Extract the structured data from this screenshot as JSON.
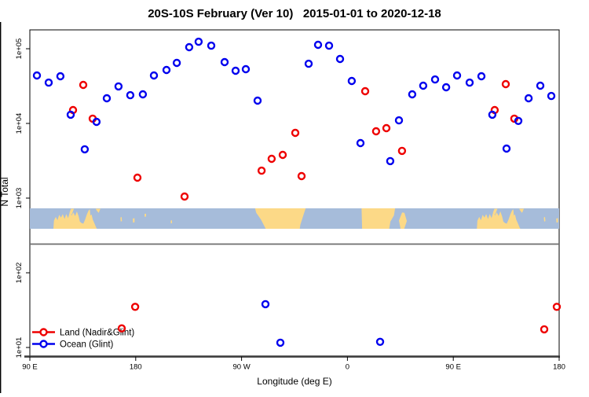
{
  "chart_data": {
    "type": "scatter",
    "title": "20S-10S February (Ver 10)   2015-01-01 to 2020-12-18",
    "xlabel": "Longitude (deg E)",
    "ylabel": "N Total",
    "x_axis": {
      "note": "longitude in deg E increasing eastward, 90E wrapped past 360 to repeat 90E-180 segment",
      "range": [
        90,
        540
      ],
      "ticks": [
        {
          "lon": 90,
          "label": "90 E"
        },
        {
          "lon": 180,
          "label": "180"
        },
        {
          "lon": 270,
          "label": "90 W"
        },
        {
          "lon": 360,
          "label": "0"
        },
        {
          "lon": 450,
          "label": "90 E"
        },
        {
          "lon": 540,
          "label": "180"
        }
      ]
    },
    "y_axis": {
      "scale": "log10",
      "range": [
        7.7,
        179000
      ],
      "ticks": [
        {
          "value": 100000,
          "label": "1e+05"
        },
        {
          "value": 10000,
          "label": "1e+04"
        },
        {
          "value": 1000,
          "label": "1e+03"
        },
        {
          "value": 100,
          "label": "1e+02"
        },
        {
          "value": 10,
          "label": "1e+01"
        }
      ],
      "grid": false
    },
    "legend_position": "bottom-left",
    "series": [
      {
        "name": "Land (Nadir&Glint)",
        "color": "#ee0000",
        "points": [
          [
            135.4,
            32800
          ],
          [
            126.7,
            15100
          ],
          [
            143.4,
            11600
          ],
          [
            181.5,
            1880
          ],
          [
            221.5,
            1050
          ],
          [
            287.0,
            2330
          ],
          [
            295.6,
            3360
          ],
          [
            305.0,
            3790
          ],
          [
            315.7,
            7480
          ],
          [
            321.0,
            1970
          ],
          [
            375.1,
            27000
          ],
          [
            384.4,
            7850
          ],
          [
            393.1,
            8650
          ],
          [
            406.4,
            4290
          ],
          [
            485.2,
            15100
          ],
          [
            494.6,
            33600
          ],
          [
            501.9,
            11600
          ],
          [
            179.5,
            35
          ],
          [
            168.1,
            18
          ],
          [
            527.3,
            17.5
          ],
          [
            538.0,
            35
          ]
        ]
      },
      {
        "name": "Ocean (Glint)",
        "color": "#0000ee",
        "points": [
          [
            96.0,
            43900
          ],
          [
            106.0,
            35200
          ],
          [
            116.0,
            42800
          ],
          [
            124.7,
            13100
          ],
          [
            136.7,
            4500
          ],
          [
            146.7,
            10500
          ],
          [
            155.4,
            21700
          ],
          [
            165.4,
            31300
          ],
          [
            175.4,
            23900
          ],
          [
            186.1,
            24500
          ],
          [
            195.5,
            43900
          ],
          [
            206.2,
            52000
          ],
          [
            214.9,
            64700
          ],
          [
            225.5,
            105000
          ],
          [
            233.5,
            124000
          ],
          [
            244.2,
            110000
          ],
          [
            255.6,
            66200
          ],
          [
            264.9,
            50700
          ],
          [
            273.6,
            53200
          ],
          [
            283.6,
            20200
          ],
          [
            327.0,
            63000
          ],
          [
            335.0,
            113000
          ],
          [
            344.4,
            110000
          ],
          [
            353.7,
            73000
          ],
          [
            363.7,
            37000
          ],
          [
            371.1,
            5460
          ],
          [
            396.4,
            3130
          ],
          [
            403.8,
            11000
          ],
          [
            415.1,
            24500
          ],
          [
            424.4,
            32000
          ],
          [
            434.5,
            38800
          ],
          [
            443.9,
            30500
          ],
          [
            453.2,
            43900
          ],
          [
            463.9,
            35200
          ],
          [
            473.9,
            42800
          ],
          [
            483.2,
            13100
          ],
          [
            495.3,
            4600
          ],
          [
            505.3,
            10800
          ],
          [
            514.0,
            21700
          ],
          [
            524.0,
            32000
          ],
          [
            533.3,
            23300
          ],
          [
            290.3,
            38
          ],
          [
            303.0,
            11.6
          ],
          [
            387.8,
            11.9
          ]
        ]
      }
    ],
    "map_strip": {
      "description": "latitude band map 20S-10S overlaid across plot",
      "ocean_color": "#a6bcda",
      "land_color": "#fcd987",
      "separator_line_color": "#6e6e6e",
      "land_masses": [
        {
          "name": "australia",
          "repeat": true,
          "pts": [
            [
              110,
              1
            ],
            [
              110.5,
              0.6
            ],
            [
              112,
              0.42
            ],
            [
              113.5,
              0.58
            ],
            [
              115,
              0.32
            ],
            [
              116.5,
              0.45
            ],
            [
              118,
              0.28
            ],
            [
              119.5,
              0.52
            ],
            [
              121,
              0.28
            ],
            [
              122.5,
              0.48
            ],
            [
              124,
              0.18
            ],
            [
              125.5,
              0.35
            ],
            [
              127,
              0.2
            ],
            [
              128.5,
              0.38
            ],
            [
              130,
              0.15
            ],
            [
              131.5,
              0.4
            ],
            [
              132.5,
              0.65
            ],
            [
              134,
              0.72
            ],
            [
              135.5,
              0.75
            ],
            [
              137,
              0.55
            ],
            [
              138.5,
              0.3
            ],
            [
              140,
              0.1
            ],
            [
              141,
              0.05
            ],
            [
              141.5,
              0.35
            ],
            [
              142.5,
              0.3
            ],
            [
              143.5,
              0.55
            ],
            [
              145,
              0.75
            ],
            [
              146.5,
              0.95
            ],
            [
              147,
              1
            ]
          ]
        },
        {
          "name": "timor",
          "repeat": true,
          "pts": [
            [
              123.8,
              0.2
            ],
            [
              125,
              0.02
            ],
            [
              127.5,
              0.02
            ],
            [
              125.5,
              0.32
            ]
          ]
        },
        {
          "name": "new-guinea-tip",
          "repeat": true,
          "pts": [
            [
              146,
              0.02
            ],
            [
              150,
              0.02
            ],
            [
              148.5,
              0.22
            ],
            [
              147,
              0.12
            ]
          ]
        },
        {
          "name": "vanuatu",
          "repeat": true,
          "pts": [
            [
              167,
              0.45
            ],
            [
              168,
              0.42
            ],
            [
              168.3,
              0.62
            ],
            [
              167.3,
              0.65
            ]
          ]
        },
        {
          "name": "fiji",
          "repeat": true,
          "pts": [
            [
              177.5,
              0.5
            ],
            [
              179,
              0.48
            ],
            [
              179,
              0.68
            ],
            [
              177.7,
              0.7
            ]
          ]
        },
        {
          "name": "samoa",
          "repeat": true,
          "pts": [
            [
              187.5,
              0.28
            ],
            [
              188.8,
              0.26
            ],
            [
              188.8,
              0.4
            ],
            [
              187.6,
              0.42
            ]
          ]
        },
        {
          "name": "tahiti",
          "repeat": false,
          "pts": [
            [
              209.8,
              0.6
            ],
            [
              210.8,
              0.58
            ],
            [
              210.9,
              0.72
            ],
            [
              209.9,
              0.74
            ]
          ]
        },
        {
          "name": "south-america",
          "repeat": false,
          "pts": [
            [
              281.5,
              0
            ],
            [
              324.5,
              0
            ],
            [
              322.5,
              0.35
            ],
            [
              320,
              0.8
            ],
            [
              319.5,
              1
            ],
            [
              290.5,
              1
            ],
            [
              286.5,
              0.55
            ],
            [
              282.5,
              0.22
            ]
          ]
        },
        {
          "name": "africa",
          "repeat": false,
          "pts": [
            [
              372,
              0
            ],
            [
              400.5,
              0
            ],
            [
              399.5,
              0.35
            ],
            [
              396.5,
              0.65
            ],
            [
              395.5,
              1
            ],
            [
              372.5,
              1
            ]
          ]
        },
        {
          "name": "madagascar",
          "repeat": false,
          "pts": [
            [
              403.8,
              0.6
            ],
            [
              406.5,
              0.2
            ],
            [
              408.5,
              0.22
            ],
            [
              410.5,
              0.62
            ],
            [
              408.3,
              1
            ],
            [
              405.2,
              1
            ]
          ]
        }
      ]
    }
  }
}
